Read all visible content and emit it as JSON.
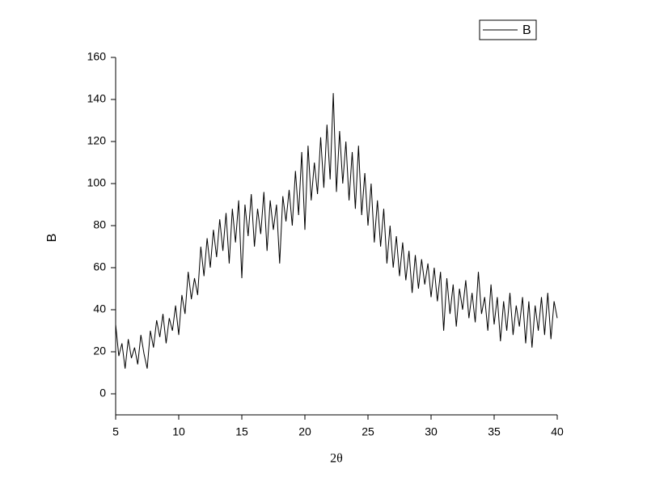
{
  "chart_data": {
    "type": "line",
    "x_label": "2θ",
    "y_label": "B",
    "xlim": [
      5,
      40
    ],
    "xticks": [
      5,
      10,
      15,
      20,
      25,
      30,
      35,
      40
    ],
    "ylim": [
      -10,
      160
    ],
    "yticks": [
      0,
      20,
      40,
      60,
      80,
      100,
      120,
      140,
      160
    ],
    "legend": "top-right",
    "x": [
      5,
      5.25,
      5.5,
      5.75,
      6,
      6.25,
      6.5,
      6.75,
      7,
      7.25,
      7.5,
      7.75,
      8,
      8.25,
      8.5,
      8.75,
      9,
      9.25,
      9.5,
      9.75,
      10,
      10.25,
      10.5,
      10.75,
      11,
      11.25,
      11.5,
      11.75,
      12,
      12.25,
      12.5,
      12.75,
      13,
      13.25,
      13.5,
      13.75,
      14,
      14.25,
      14.5,
      14.75,
      15,
      15.25,
      15.5,
      15.75,
      16,
      16.25,
      16.5,
      16.75,
      17,
      17.25,
      17.5,
      17.75,
      18,
      18.25,
      18.5,
      18.75,
      19,
      19.25,
      19.5,
      19.75,
      20,
      20.25,
      20.5,
      20.75,
      21,
      21.25,
      21.5,
      21.75,
      22,
      22.25,
      22.5,
      22.75,
      23,
      23.25,
      23.5,
      23.75,
      24,
      24.25,
      24.5,
      24.75,
      25,
      25.25,
      25.5,
      25.75,
      26,
      26.25,
      26.5,
      26.75,
      27,
      27.25,
      27.5,
      27.75,
      28,
      28.25,
      28.5,
      28.75,
      29,
      29.25,
      29.5,
      29.75,
      30,
      30.25,
      30.5,
      30.75,
      31,
      31.25,
      31.5,
      31.75,
      32,
      32.25,
      32.5,
      32.75,
      33,
      33.25,
      33.5,
      33.75,
      34,
      34.25,
      34.5,
      34.75,
      35,
      35.25,
      35.5,
      35.75,
      36,
      36.25,
      36.5,
      36.75,
      37,
      37.25,
      37.5,
      37.75,
      38,
      38.25,
      38.5,
      38.75,
      39,
      39.25,
      39.5,
      39.75,
      40
    ],
    "series": [
      {
        "name": "B",
        "color": "#000000",
        "values": [
          33,
          18,
          24,
          12,
          26,
          17,
          22,
          14,
          28,
          19,
          12,
          30,
          22,
          35,
          27,
          38,
          24,
          36,
          30,
          42,
          28,
          47,
          38,
          58,
          45,
          55,
          47,
          70,
          56,
          74,
          60,
          78,
          65,
          83,
          68,
          86,
          62,
          88,
          72,
          92,
          55,
          90,
          75,
          95,
          70,
          88,
          76,
          96,
          68,
          92,
          78,
          90,
          62,
          94,
          82,
          97,
          80,
          106,
          85,
          115,
          78,
          118,
          92,
          110,
          95,
          122,
          98,
          128,
          102,
          143,
          96,
          125,
          100,
          120,
          92,
          115,
          88,
          118,
          85,
          105,
          80,
          100,
          72,
          92,
          70,
          88,
          62,
          80,
          60,
          75,
          56,
          72,
          54,
          68,
          48,
          66,
          50,
          64,
          52,
          62,
          46,
          60,
          44,
          58,
          30,
          55,
          38,
          52,
          32,
          50,
          40,
          54,
          36,
          48,
          34,
          58,
          38,
          46,
          30,
          52,
          33,
          46,
          25,
          44,
          30,
          48,
          28,
          42,
          32,
          46,
          24,
          44,
          22,
          42,
          30,
          46,
          28,
          48,
          26,
          44,
          36
        ]
      }
    ]
  }
}
